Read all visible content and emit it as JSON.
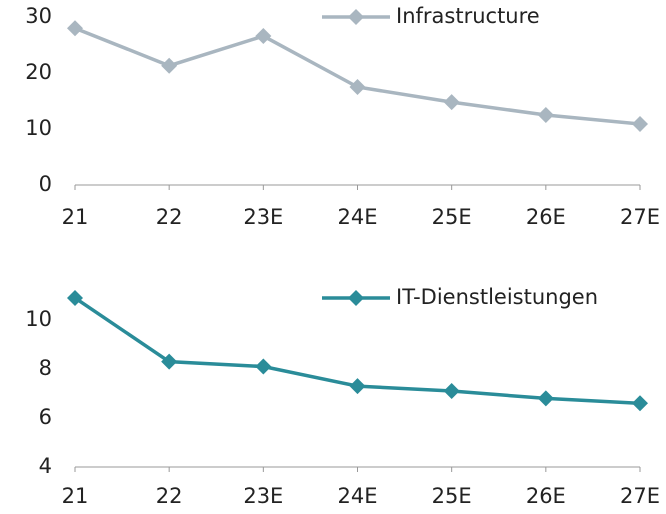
{
  "chart_data": [
    {
      "type": "line",
      "categories": [
        "21",
        "22",
        "23E",
        "24E",
        "25E",
        "26E",
        "27E"
      ],
      "series": [
        {
          "name": "Infrastructure",
          "color": "#a9b6c0",
          "values": [
            28.0,
            21.3,
            26.6,
            17.5,
            14.8,
            12.5,
            10.9
          ]
        }
      ],
      "ylim": [
        0,
        30
      ],
      "yticks": [
        0,
        10,
        20,
        30
      ],
      "grid": false,
      "legend": "top-right"
    },
    {
      "type": "line",
      "categories": [
        "21",
        "22",
        "23E",
        "24E",
        "25E",
        "26E",
        "27E"
      ],
      "series": [
        {
          "name": "IT-Dienstleistungen",
          "color": "#2a8c99",
          "values": [
            10.9,
            8.3,
            8.1,
            7.3,
            7.1,
            6.8,
            6.6
          ]
        }
      ],
      "ylim": [
        4,
        11
      ],
      "yticks": [
        4,
        6,
        8,
        10
      ],
      "grid": false,
      "legend": "top-right"
    }
  ]
}
